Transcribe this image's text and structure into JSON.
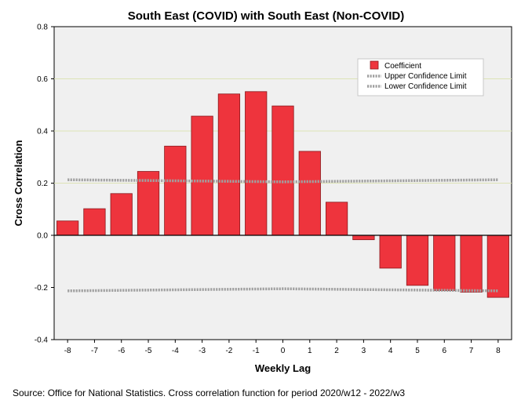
{
  "chart_data": {
    "type": "bar",
    "title": "South East (COVID) with South East (Non-COVID)",
    "xlabel": "Weekly Lag",
    "ylabel": "Cross Correlation",
    "categories": [
      "-8",
      "-7",
      "-6",
      "-5",
      "-4",
      "-3",
      "-2",
      "-1",
      "0",
      "1",
      "2",
      "3",
      "4",
      "5",
      "6",
      "7",
      "8"
    ],
    "series": [
      {
        "name": "Coefficient",
        "values": [
          0.055,
          0.102,
          0.16,
          0.245,
          0.342,
          0.457,
          0.542,
          0.551,
          0.496,
          0.322,
          0.127,
          -0.017,
          -0.126,
          -0.192,
          -0.212,
          -0.218,
          -0.238
        ]
      },
      {
        "name": "Upper Confidence Limit",
        "values": [
          0.213,
          0.212,
          0.211,
          0.21,
          0.209,
          0.208,
          0.207,
          0.206,
          0.205,
          0.206,
          0.207,
          0.208,
          0.209,
          0.21,
          0.211,
          0.212,
          0.213
        ]
      },
      {
        "name": "Lower Confidence Limit",
        "values": [
          -0.213,
          -0.212,
          -0.211,
          -0.21,
          -0.209,
          -0.208,
          -0.207,
          -0.206,
          -0.205,
          -0.206,
          -0.207,
          -0.208,
          -0.209,
          -0.21,
          -0.211,
          -0.212,
          -0.213
        ]
      }
    ],
    "ylim": [
      -0.4,
      0.8
    ],
    "yticks": [
      "-0.4",
      "-0.2",
      "0.0",
      "0.2",
      "0.4",
      "0.6",
      "0.8"
    ],
    "gridlines_at": [
      0.2,
      0.4,
      0.6
    ],
    "legend": {
      "position": "top-right",
      "entries": [
        "Coefficient",
        "Upper Confidence Limit",
        "Lower Confidence Limit"
      ]
    },
    "colors": {
      "bar": "#ee343d",
      "bar_edge": "#8a1a1e",
      "confidence": "#a0a0a0",
      "plot_bg": "#f0f0f0",
      "grid": "#dde3b6"
    }
  },
  "footer": {
    "source": "Source: Office for National Statistics. Cross correlation function for period 2020/w12 - 2022/w3"
  }
}
